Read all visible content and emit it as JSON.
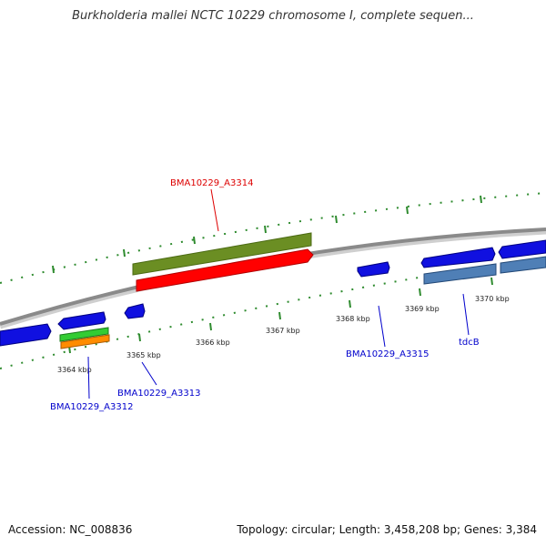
{
  "title": "Burkholderia mallei NCTC 10229 chromosome I, complete sequen...",
  "footer": {
    "accession": "Accession: NC_008836",
    "summary": "Topology: circular; Length: 3,458,208 bp; Genes: 3,384"
  },
  "colors": {
    "backbone": "#8a8a8a",
    "gene_forward": "#1010e0",
    "gene_steelblue": "#4f7fb6",
    "highlight_green": "#6b8e23",
    "highlight_red": "#ff0000",
    "small_green": "#33cc33",
    "small_orange": "#ff8c00",
    "tick": "#2e8b2e",
    "label_blue": "#0000cc",
    "label_red": "#dd0000"
  },
  "ticks": {
    "labels": [
      "3364 kbp",
      "3365 kbp",
      "3366 kbp",
      "3367 kbp",
      "3368 kbp",
      "3369 kbp",
      "3370 kbp"
    ]
  },
  "gene_labels": [
    {
      "id": "bma3314",
      "text": "BMA10229_A3314",
      "color": "red"
    },
    {
      "id": "bma3315",
      "text": "BMA10229_A3315",
      "color": "blue"
    },
    {
      "id": "tdcb",
      "text": "tdcB",
      "color": "blue"
    },
    {
      "id": "bma3313",
      "text": "BMA10229_A3313",
      "color": "blue"
    },
    {
      "id": "bma3312",
      "text": "BMA10229_A3312",
      "color": "blue"
    }
  ]
}
